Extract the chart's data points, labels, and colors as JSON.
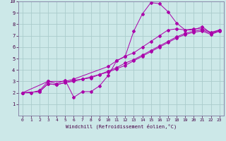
{
  "background_color": "#cce8e8",
  "grid_color": "#aacccc",
  "line_color": "#aa00aa",
  "xlim": [
    -0.5,
    23.5
  ],
  "ylim": [
    0,
    10
  ],
  "xticks": [
    0,
    1,
    2,
    3,
    4,
    5,
    6,
    7,
    8,
    9,
    10,
    11,
    12,
    13,
    14,
    15,
    16,
    17,
    18,
    19,
    20,
    21,
    22,
    23
  ],
  "yticks": [
    1,
    2,
    3,
    4,
    5,
    6,
    7,
    8,
    9,
    10
  ],
  "xlabel": "Windchill (Refroidissement éolien,°C)",
  "series": [
    {
      "x": [
        0,
        1,
        2,
        3,
        4,
        5,
        6,
        7,
        8,
        9,
        10,
        11,
        12,
        13,
        14,
        15,
        16,
        17,
        18,
        19,
        20,
        21,
        22,
        23
      ],
      "y": [
        2.0,
        2.0,
        2.2,
        3.0,
        2.8,
        3.1,
        1.6,
        2.1,
        2.1,
        2.6,
        3.5,
        4.8,
        5.2,
        7.4,
        8.9,
        9.9,
        9.8,
        9.1,
        8.1,
        7.5,
        7.5,
        7.8,
        7.2,
        7.5
      ]
    },
    {
      "x": [
        0,
        3,
        5,
        6,
        10,
        11,
        12,
        13,
        14,
        15,
        16,
        17,
        18,
        19,
        20,
        21,
        22,
        23
      ],
      "y": [
        2.0,
        3.0,
        3.0,
        3.2,
        4.3,
        4.8,
        5.2,
        5.5,
        6.0,
        6.5,
        7.0,
        7.5,
        7.6,
        7.5,
        7.6,
        7.6,
        7.3,
        7.5
      ]
    },
    {
      "x": [
        0,
        2,
        3,
        4,
        5,
        6,
        7,
        8,
        9,
        10,
        11,
        12,
        13,
        14,
        15,
        16,
        17,
        18,
        19,
        20,
        21,
        22,
        23
      ],
      "y": [
        2.0,
        2.1,
        2.8,
        2.7,
        2.9,
        3.1,
        3.2,
        3.4,
        3.6,
        3.9,
        4.2,
        4.6,
        4.9,
        5.3,
        5.7,
        6.1,
        6.5,
        6.9,
        7.2,
        7.4,
        7.5,
        7.2,
        7.4
      ]
    },
    {
      "x": [
        0,
        2,
        3,
        4,
        5,
        6,
        7,
        8,
        9,
        10,
        11,
        12,
        13,
        14,
        15,
        16,
        17,
        18,
        19,
        20,
        21,
        22,
        23
      ],
      "y": [
        2.0,
        2.1,
        2.8,
        2.7,
        2.9,
        3.0,
        3.2,
        3.3,
        3.6,
        3.8,
        4.1,
        4.4,
        4.8,
        5.2,
        5.6,
        6.0,
        6.4,
        6.8,
        7.1,
        7.3,
        7.4,
        7.1,
        7.4
      ]
    }
  ]
}
